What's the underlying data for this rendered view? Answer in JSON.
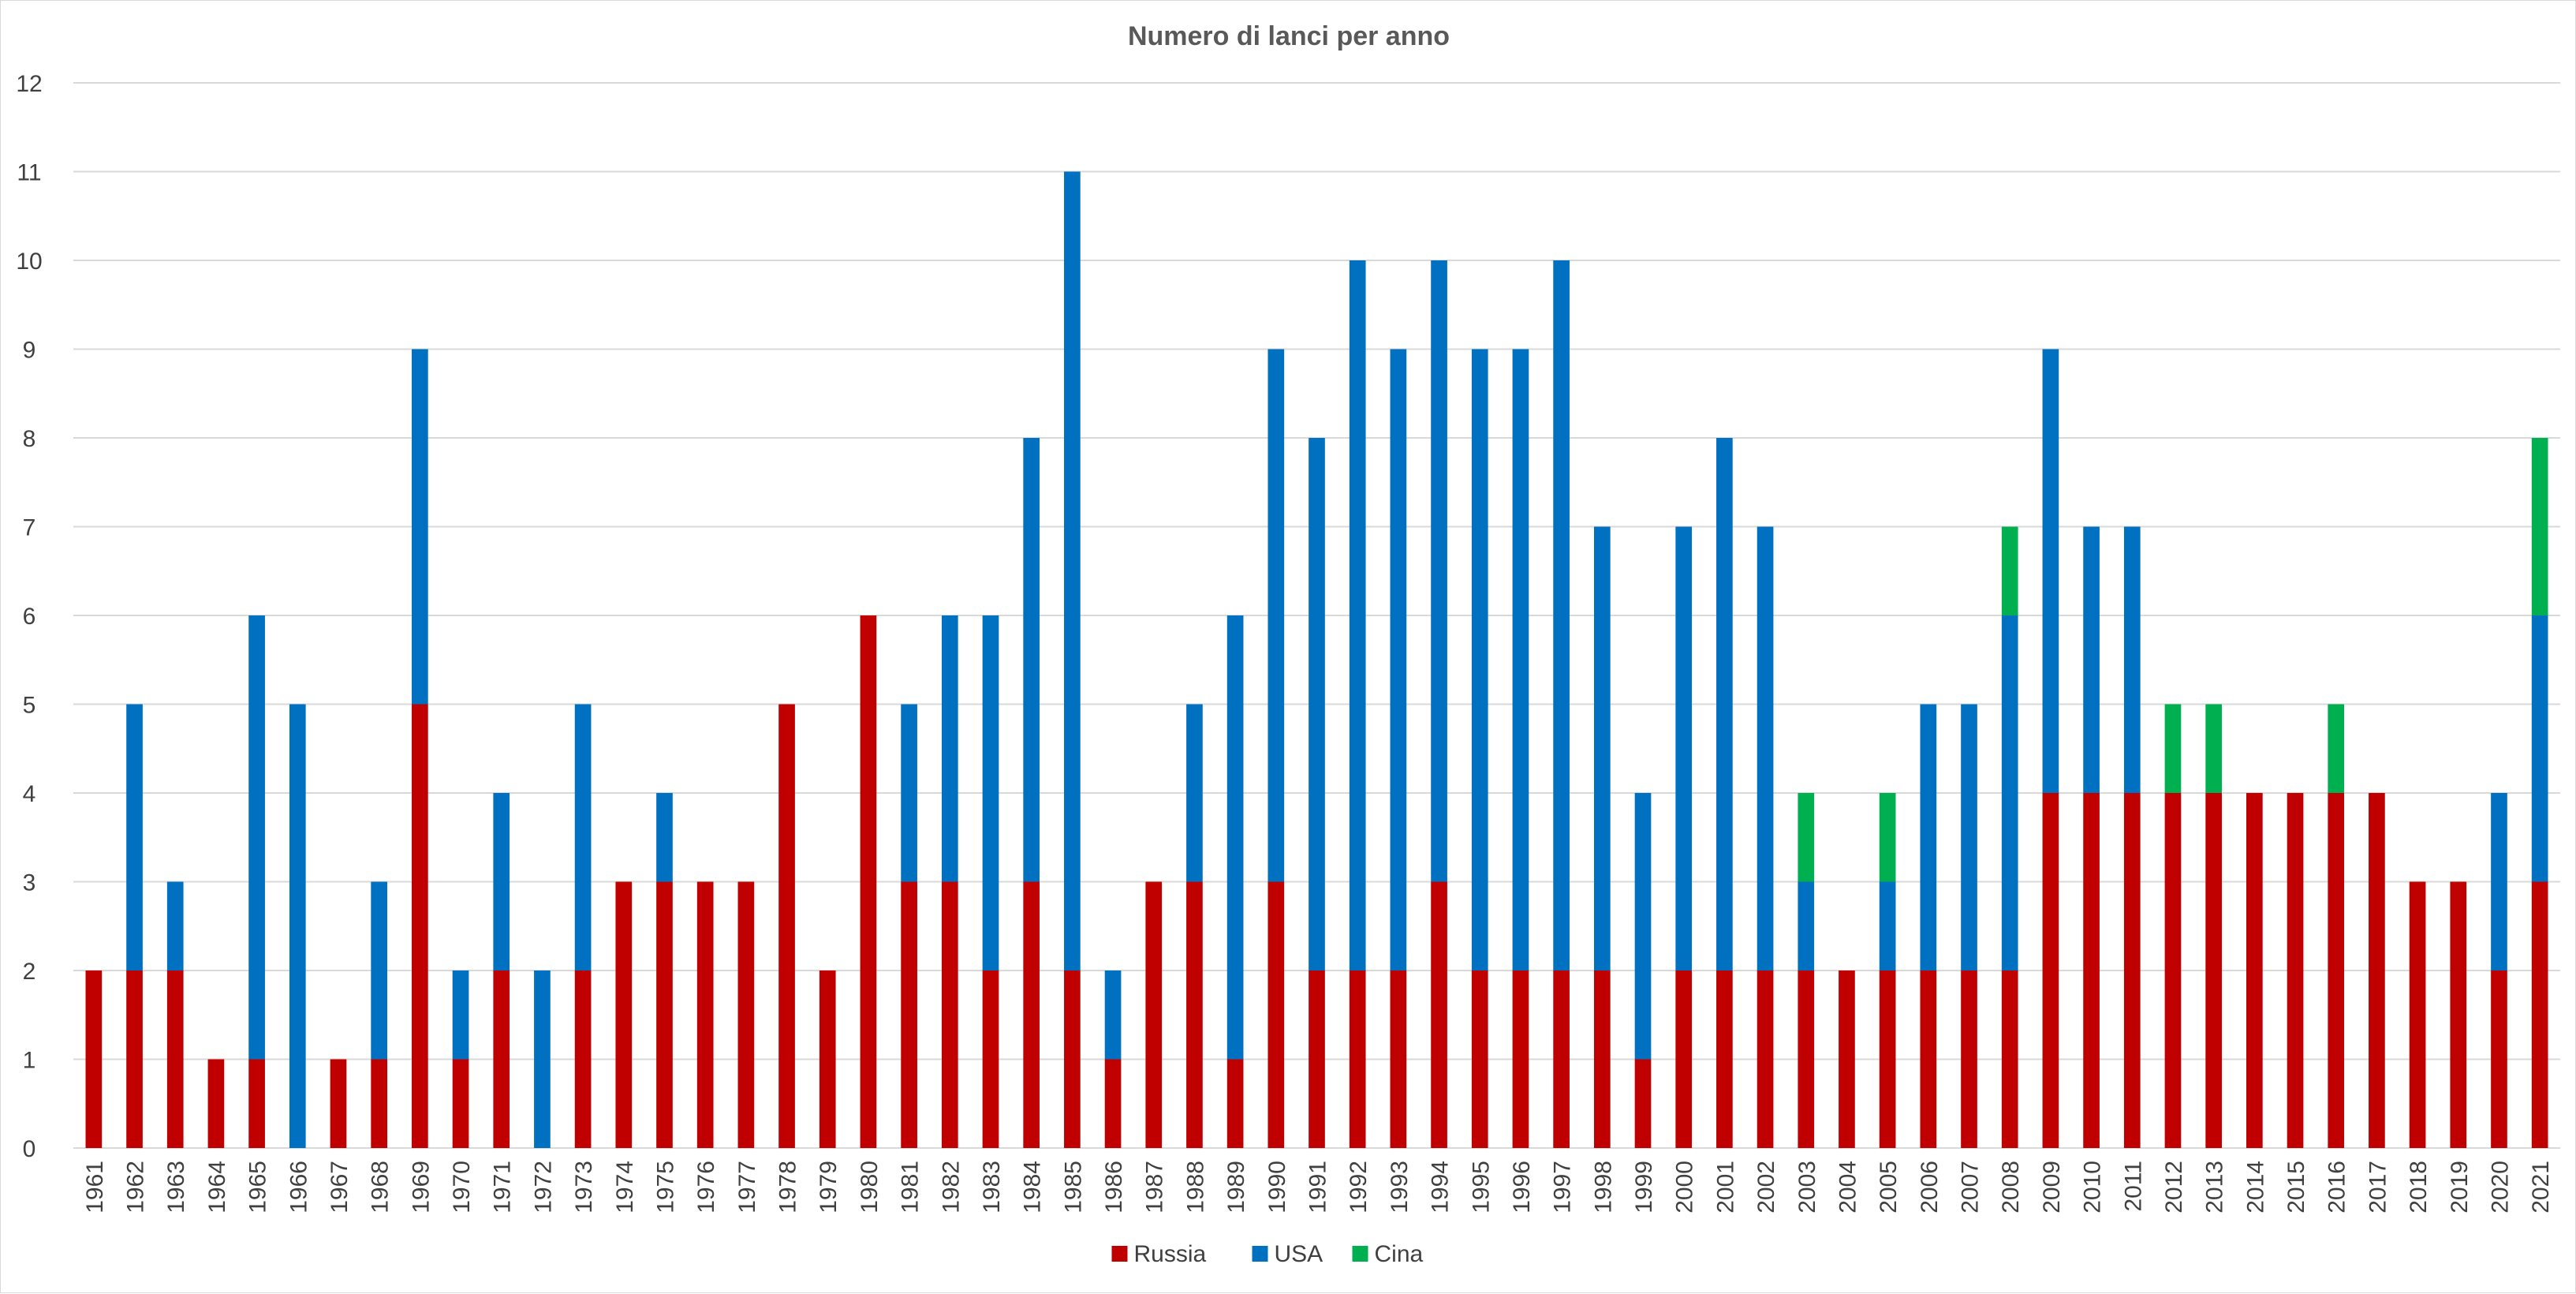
{
  "chart_data": {
    "type": "bar",
    "stacked": true,
    "title": "Numero di lanci per anno",
    "xlabel": "",
    "ylabel": "",
    "ylim": [
      0,
      12
    ],
    "yticks": [
      0,
      1,
      2,
      3,
      4,
      5,
      6,
      7,
      8,
      9,
      10,
      11,
      12
    ],
    "grid": true,
    "legend_position": "bottom",
    "categories": [
      "1961",
      "1962",
      "1963",
      "1964",
      "1965",
      "1966",
      "1967",
      "1968",
      "1969",
      "1970",
      "1971",
      "1972",
      "1973",
      "1974",
      "1975",
      "1976",
      "1977",
      "1978",
      "1979",
      "1980",
      "1981",
      "1982",
      "1983",
      "1984",
      "1985",
      "1986",
      "1987",
      "1988",
      "1989",
      "1990",
      "1991",
      "1992",
      "1993",
      "1994",
      "1995",
      "1996",
      "1997",
      "1998",
      "1999",
      "2000",
      "2001",
      "2002",
      "2003",
      "2004",
      "2005",
      "2006",
      "2007",
      "2008",
      "2009",
      "2010",
      "2011",
      "2012",
      "2013",
      "2014",
      "2015",
      "2016",
      "2017",
      "2018",
      "2019",
      "2020",
      "2021"
    ],
    "series": [
      {
        "name": "Russia",
        "color": "#c00000",
        "values": [
          2,
          2,
          2,
          1,
          1,
          0,
          1,
          1,
          5,
          1,
          2,
          0,
          2,
          3,
          3,
          3,
          3,
          5,
          2,
          6,
          3,
          3,
          2,
          3,
          2,
          1,
          3,
          3,
          1,
          3,
          2,
          2,
          2,
          3,
          2,
          2,
          2,
          2,
          1,
          2,
          2,
          2,
          2,
          2,
          2,
          2,
          2,
          2,
          4,
          4,
          4,
          4,
          4,
          4,
          4,
          4,
          4,
          3,
          3,
          2,
          3
        ]
      },
      {
        "name": "USA",
        "color": "#0070c0",
        "values": [
          0,
          3,
          1,
          0,
          5,
          5,
          0,
          2,
          4,
          1,
          2,
          2,
          3,
          0,
          1,
          0,
          0,
          0,
          0,
          0,
          2,
          3,
          4,
          5,
          9,
          1,
          0,
          2,
          5,
          6,
          6,
          8,
          7,
          7,
          7,
          7,
          8,
          5,
          3,
          5,
          6,
          5,
          1,
          0,
          1,
          3,
          3,
          4,
          5,
          3,
          3,
          0,
          0,
          0,
          0,
          0,
          0,
          0,
          0,
          2,
          3
        ]
      },
      {
        "name": "Cina",
        "color": "#00b050",
        "values": [
          0,
          0,
          0,
          0,
          0,
          0,
          0,
          0,
          0,
          0,
          0,
          0,
          0,
          0,
          0,
          0,
          0,
          0,
          0,
          0,
          0,
          0,
          0,
          0,
          0,
          0,
          0,
          0,
          0,
          0,
          0,
          0,
          0,
          0,
          0,
          0,
          0,
          0,
          0,
          0,
          0,
          0,
          1,
          0,
          1,
          0,
          0,
          1,
          0,
          0,
          0,
          1,
          1,
          0,
          0,
          1,
          0,
          0,
          0,
          0,
          2
        ]
      }
    ]
  }
}
